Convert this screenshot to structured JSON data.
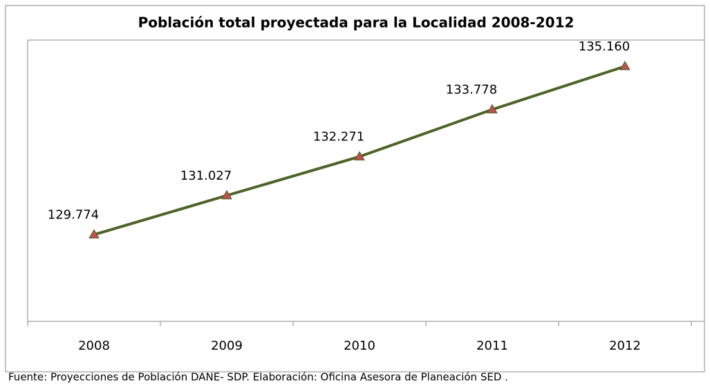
{
  "chart_data": {
    "type": "line",
    "title": "Población  total proyectada para la Localidad 2008-2012",
    "categories": [
      "2008",
      "2009",
      "2010",
      "2011",
      "2012"
    ],
    "series": [
      {
        "name": "Población total",
        "color": "#4f6228",
        "marker_color": "#c0504d",
        "values": [
          129774,
          131027,
          132271,
          133778,
          135160
        ],
        "value_labels": [
          "129.774",
          "131.027",
          "132.271",
          "133.778",
          "135.160"
        ]
      }
    ],
    "ylim": [
      127000,
      136000
    ],
    "grid": false,
    "source": "Fuente: Proyecciones de Población DANE- SDP. Elaboración: Oficina Asesora de Planeación SED ."
  }
}
